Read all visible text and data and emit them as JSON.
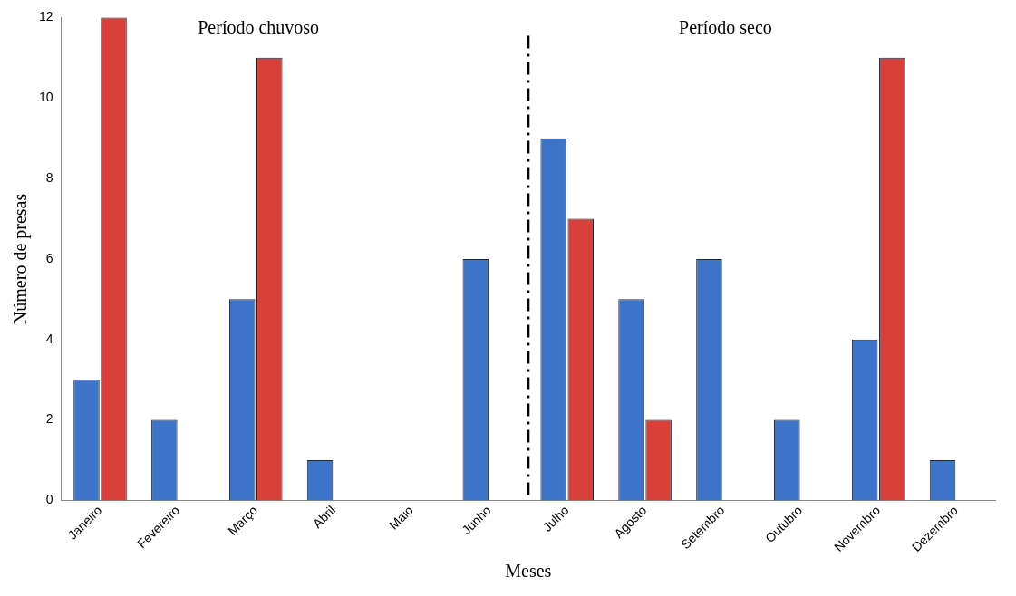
{
  "chart_data": {
    "type": "bar",
    "xlabel": "Meses",
    "ylabel": "Número de presas",
    "categories": [
      "Janeiro",
      "Fevereiro",
      "Março",
      "Abril",
      "Maio",
      "Junho",
      "Julho",
      "Agosto",
      "Setembro",
      "Outubro",
      "Novembro",
      "Dezembro"
    ],
    "series": [
      {
        "color": "#3d73c9",
        "values": [
          3,
          2,
          5,
          1,
          null,
          6,
          9,
          5,
          6,
          2,
          4,
          1
        ]
      },
      {
        "color": "#d9403a",
        "values": [
          12,
          null,
          11,
          null,
          null,
          null,
          7,
          2,
          null,
          null,
          11,
          null
        ]
      }
    ],
    "ylim": [
      0,
      12
    ],
    "yticks": [
      0,
      2,
      4,
      6,
      8,
      10,
      12
    ],
    "grid": false,
    "legend": false,
    "annotations": [
      "Período chuvoso",
      "Período seco"
    ]
  }
}
